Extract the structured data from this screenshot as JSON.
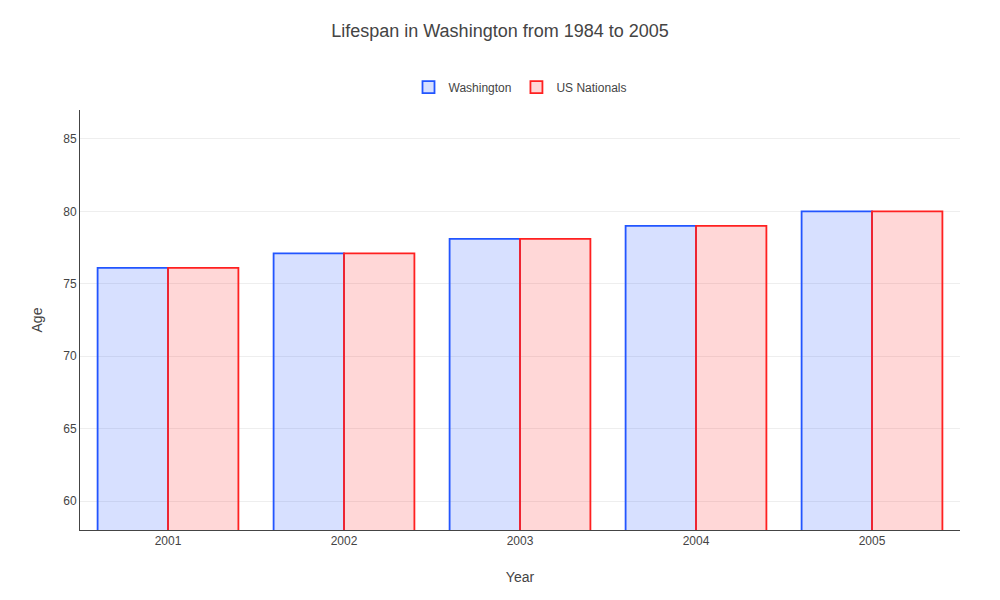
{
  "chart_data": {
    "type": "bar",
    "title": "Lifespan in Washington from 1984 to 2005",
    "xlabel": "Year",
    "ylabel": "Age",
    "categories": [
      "2001",
      "2002",
      "2003",
      "2004",
      "2005"
    ],
    "series": [
      {
        "name": "Washington",
        "color": "#2255ff",
        "values": [
          76.1,
          77.1,
          78.1,
          79.0,
          80.0
        ]
      },
      {
        "name": "US Nationals",
        "color": "#ff2020",
        "values": [
          76.1,
          77.1,
          78.1,
          79.0,
          80.0
        ]
      }
    ],
    "ylim": [
      58,
      87
    ],
    "yticks": [
      60,
      65,
      70,
      75,
      80,
      85
    ],
    "grid": true,
    "legend": "upper center"
  }
}
